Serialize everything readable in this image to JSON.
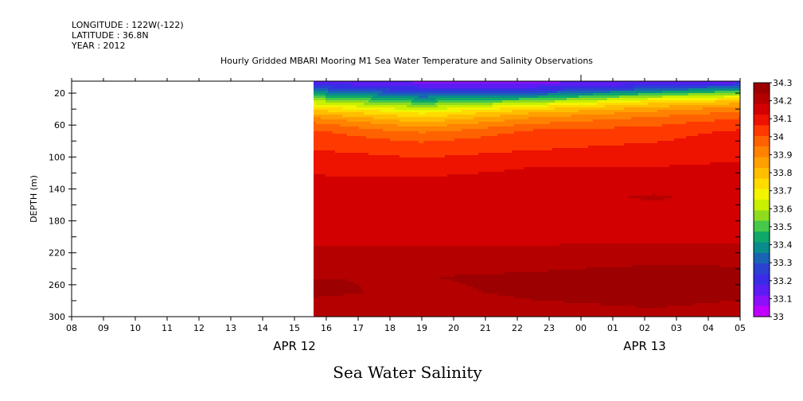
{
  "header": {
    "longitude": "LONGITUDE : 122W(-122)",
    "latitude": "LATITUDE : 36.8N",
    "year": "YEAR : 2012"
  },
  "chart_data": {
    "type": "heatmap",
    "title": "Hourly Gridded MBARI Mooring M1 Sea Water Temperature and Salinity Observations",
    "bottom_title": "Sea Water Salinity",
    "xlabel": "",
    "ylabel": "DEPTH (m)",
    "x_tick_labels": [
      "08",
      "09",
      "10",
      "11",
      "12",
      "13",
      "14",
      "15",
      "16",
      "17",
      "18",
      "19",
      "20",
      "21",
      "22",
      "23",
      "00",
      "01",
      "02",
      "03",
      "04",
      "05"
    ],
    "date_labels": [
      {
        "label": "APR 12",
        "at_tick": 7
      },
      {
        "label": "APR 13",
        "at_tick": 18
      }
    ],
    "x_range_hours": [
      0,
      21
    ],
    "data_start_hour": 7.6,
    "y_ticks": [
      20,
      60,
      100,
      140,
      180,
      220,
      260,
      300
    ],
    "ylim": [
      300,
      5
    ],
    "colorbar": {
      "labels": [
        "34.3",
        "34.2",
        "34.1",
        "34",
        "33.9",
        "33.8",
        "33.7",
        "33.6",
        "33.5",
        "33.4",
        "33.3",
        "33.2",
        "33.1",
        "33"
      ],
      "colors_high_to_low": [
        "#9c0000",
        "#b50000",
        "#d20000",
        "#ee1200",
        "#ff3a00",
        "#ff6200",
        "#ff8200",
        "#ffa000",
        "#ffbe00",
        "#ffdb00",
        "#f2f400",
        "#c8f000",
        "#8fdc1e",
        "#46c84a",
        "#10a86a",
        "#0a8c8c",
        "#1a64b4",
        "#2a42d2",
        "#3a2ce6",
        "#5c1cf4",
        "#8c10fa",
        "#c000ff"
      ],
      "min": 33.0,
      "max": 34.3
    },
    "depth_profiles": [
      {
        "hour": 7.6,
        "depths": [
          5,
          10,
          15,
          20,
          25,
          30,
          35,
          40,
          45,
          50,
          55,
          60,
          65,
          70,
          80,
          90,
          100,
          110,
          130,
          150,
          170,
          190,
          200,
          210,
          230,
          250,
          270,
          290,
          300
        ],
        "values": [
          33.15,
          33.2,
          33.3,
          33.4,
          33.5,
          33.6,
          33.68,
          33.75,
          33.82,
          33.88,
          33.93,
          33.97,
          34.0,
          34.02,
          34.04,
          34.06,
          34.09,
          34.11,
          34.13,
          34.15,
          34.16,
          34.18,
          34.17,
          34.18,
          34.21,
          34.24,
          34.25,
          34.22,
          34.23
        ]
      },
      {
        "hour": 11.0,
        "depths": [
          5,
          10,
          15,
          20,
          25,
          30,
          35,
          40,
          45,
          50,
          55,
          60,
          65,
          70,
          80,
          90,
          100,
          110,
          130,
          150,
          170,
          190,
          200,
          210,
          230,
          250,
          270,
          290,
          300
        ],
        "values": [
          33.1,
          33.15,
          33.2,
          33.28,
          33.36,
          33.45,
          33.55,
          33.63,
          33.7,
          33.76,
          33.81,
          33.86,
          33.9,
          33.95,
          34.0,
          34.03,
          34.06,
          34.1,
          34.13,
          34.15,
          34.16,
          34.18,
          34.17,
          34.18,
          34.21,
          34.24,
          34.23,
          34.21,
          34.22
        ]
      },
      {
        "hour": 14.5,
        "depths": [
          5,
          10,
          15,
          20,
          25,
          30,
          35,
          40,
          45,
          50,
          55,
          60,
          65,
          70,
          80,
          90,
          100,
          110,
          130,
          150,
          170,
          190,
          200,
          210,
          230,
          250,
          270,
          290,
          300
        ],
        "values": [
          33.1,
          33.15,
          33.2,
          33.3,
          33.42,
          33.55,
          33.67,
          33.76,
          33.83,
          33.88,
          33.92,
          33.96,
          34.0,
          34.02,
          34.04,
          34.06,
          34.09,
          34.12,
          34.14,
          34.15,
          34.16,
          34.16,
          34.16,
          34.18,
          34.22,
          34.25,
          34.25,
          34.23,
          34.23
        ]
      },
      {
        "hour": 18.3,
        "depths": [
          5,
          10,
          15,
          20,
          25,
          30,
          35,
          40,
          45,
          50,
          55,
          60,
          65,
          70,
          80,
          90,
          100,
          110,
          130,
          150,
          170,
          190,
          200,
          210,
          230,
          250,
          270,
          290,
          300
        ],
        "values": [
          33.1,
          33.2,
          33.3,
          33.45,
          33.6,
          33.72,
          33.8,
          33.86,
          33.91,
          33.95,
          33.98,
          34.0,
          34.02,
          34.04,
          34.06,
          34.08,
          34.1,
          34.12,
          34.14,
          34.19,
          34.16,
          34.16,
          34.16,
          34.19,
          34.23,
          34.27,
          34.26,
          34.24,
          34.24
        ]
      },
      {
        "hour": 21.0,
        "depths": [
          5,
          10,
          15,
          20,
          25,
          30,
          35,
          40,
          45,
          50,
          55,
          60,
          65,
          70,
          80,
          90,
          100,
          110,
          130,
          150,
          170,
          190,
          200,
          210,
          230,
          250,
          270,
          290,
          300
        ],
        "values": [
          33.15,
          33.25,
          33.4,
          33.55,
          33.68,
          33.78,
          33.86,
          33.92,
          33.96,
          34.0,
          34.02,
          34.04,
          34.06,
          34.08,
          34.09,
          34.1,
          34.11,
          34.13,
          34.14,
          34.15,
          34.16,
          34.16,
          34.16,
          34.19,
          34.23,
          34.26,
          34.25,
          34.23,
          34.23
        ]
      }
    ]
  }
}
